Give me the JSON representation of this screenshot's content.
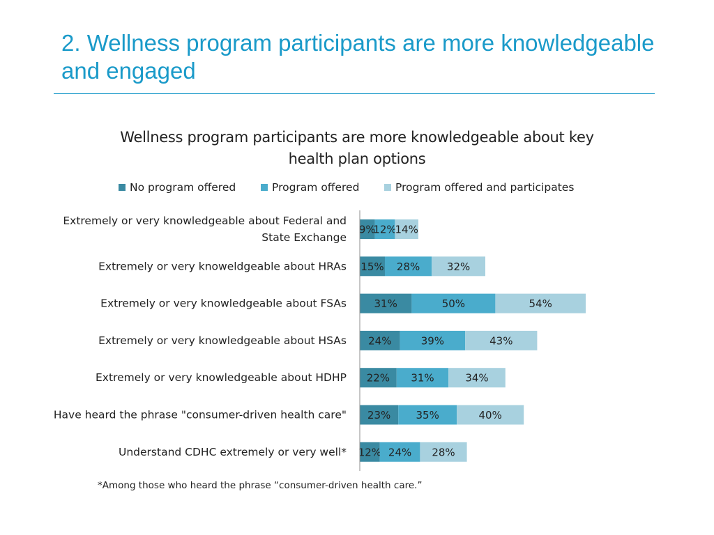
{
  "slide": {
    "title": "2. Wellness program participants are more knowledgeable and engaged",
    "footnote": "*Among those who heard the phrase “consumer-driven health care.”"
  },
  "colors": {
    "accent": "#1a9ac9",
    "series": [
      "#3a8aa2",
      "#4aaccc",
      "#a8d1df"
    ]
  },
  "chart_data": {
    "type": "bar",
    "orientation": "horizontal",
    "stacked": true,
    "title": "Wellness program participants are more knowledgeable about key health plan options",
    "legend_position": "top",
    "categories": [
      "Extremely or very knowledgeable about Federal and State Exchange",
      "Extremely or very knoweldgeable about HRAs",
      "Extremely or very knowledgeable about FSAs",
      "Extremely or very knowledgeable about HSAs",
      "Extremely or very knowledgeable about HDHP",
      "Have heard the phrase \"consumer-driven health care\"",
      "Understand CDHC extremely or very well*"
    ],
    "series": [
      {
        "name": "No program offered",
        "values": [
          9,
          15,
          31,
          24,
          22,
          23,
          12
        ]
      },
      {
        "name": "Program offered",
        "values": [
          12,
          28,
          50,
          39,
          31,
          35,
          24
        ]
      },
      {
        "name": "Program offered and participates",
        "values": [
          14,
          32,
          54,
          43,
          34,
          40,
          28
        ]
      }
    ],
    "value_suffix": "%",
    "grid": false
  }
}
